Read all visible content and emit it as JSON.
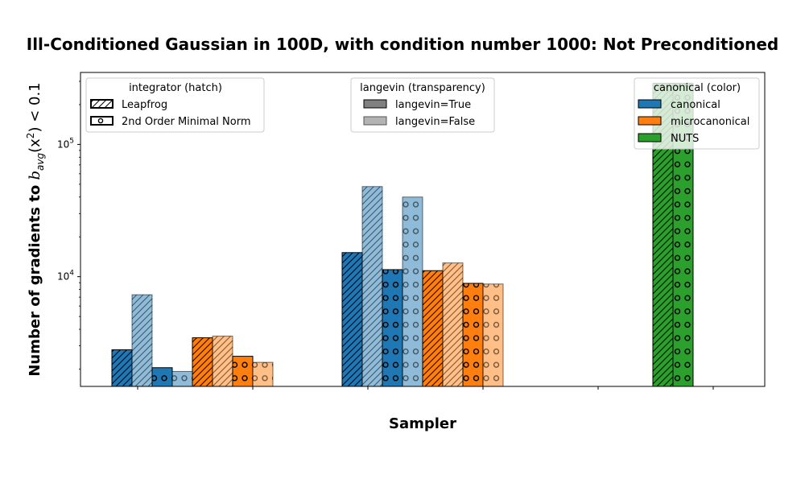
{
  "chart_data": {
    "type": "bar",
    "title": "Ill-Conditioned Gaussian in 100D, with condition number 1000: Not Preconditioned",
    "xlabel": "Sampler",
    "ylabel_prefix": "Number of gradients to ",
    "ylabel_math": "b",
    "ylabel_sub": "avg",
    "ylabel_mid": "(x",
    "ylabel_sup": "2",
    "ylabel_end": ") < 0.1",
    "yscale": "log",
    "ylim": [
      1480,
      350000
    ],
    "yticks": [
      {
        "value": 10000,
        "base": "10",
        "exp": "4"
      },
      {
        "value": 100000,
        "base": "10",
        "exp": "5"
      }
    ],
    "colors": {
      "canonical": "#1f77b4",
      "microcanonical": "#ff7f0e",
      "NUTS": "#2ca02c"
    },
    "series": [
      {
        "group": 0,
        "color": "canonical",
        "hatch": "diag",
        "langevin": true,
        "value": 2800
      },
      {
        "group": 0,
        "color": "canonical",
        "hatch": "diag",
        "langevin": false,
        "value": 7300
      },
      {
        "group": 0,
        "color": "canonical",
        "hatch": "dots",
        "langevin": true,
        "value": 2050
      },
      {
        "group": 0,
        "color": "canonical",
        "hatch": "dots",
        "langevin": false,
        "value": 1920
      },
      {
        "group": 0,
        "color": "microcanonical",
        "hatch": "diag",
        "langevin": true,
        "value": 3450
      },
      {
        "group": 0,
        "color": "microcanonical",
        "hatch": "diag",
        "langevin": false,
        "value": 3550
      },
      {
        "group": 0,
        "color": "microcanonical",
        "hatch": "dots",
        "langevin": true,
        "value": 2500
      },
      {
        "group": 0,
        "color": "microcanonical",
        "hatch": "dots",
        "langevin": false,
        "value": 2250
      },
      {
        "group": 1,
        "color": "canonical",
        "hatch": "diag",
        "langevin": true,
        "value": 15200
      },
      {
        "group": 1,
        "color": "canonical",
        "hatch": "diag",
        "langevin": false,
        "value": 48000
      },
      {
        "group": 1,
        "color": "canonical",
        "hatch": "dots",
        "langevin": true,
        "value": 11300
      },
      {
        "group": 1,
        "color": "canonical",
        "hatch": "dots",
        "langevin": false,
        "value": 40000
      },
      {
        "group": 1,
        "color": "microcanonical",
        "hatch": "diag",
        "langevin": true,
        "value": 11100
      },
      {
        "group": 1,
        "color": "microcanonical",
        "hatch": "diag",
        "langevin": false,
        "value": 12700
      },
      {
        "group": 1,
        "color": "microcanonical",
        "hatch": "dots",
        "langevin": true,
        "value": 8900
      },
      {
        "group": 1,
        "color": "microcanonical",
        "hatch": "dots",
        "langevin": false,
        "value": 8800
      },
      {
        "group": 2,
        "color": "NUTS",
        "hatch": "diag",
        "langevin": true,
        "value": 290000
      },
      {
        "group": 2,
        "color": "NUTS",
        "hatch": "dots",
        "langevin": true,
        "value": 290000
      }
    ],
    "legends": {
      "hatch": {
        "title": "integrator (hatch)",
        "entries": [
          "Leapfrog",
          "2nd Order Minimal Norm"
        ]
      },
      "transparency": {
        "title": "langevin (transparency)",
        "entries": [
          "langevin=True",
          "langevin=False"
        ]
      },
      "color": {
        "title": "canonical (color)",
        "entries": [
          "canonical",
          "microcanonical",
          "NUTS"
        ]
      }
    },
    "legend_placement": [
      "top-left",
      "top-center",
      "top-right"
    ],
    "grid": false
  }
}
